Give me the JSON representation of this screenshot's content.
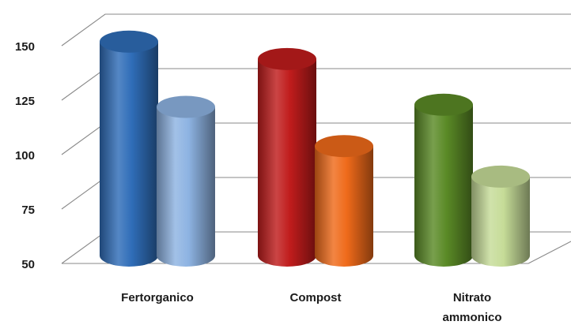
{
  "chart_data": {
    "type": "bar",
    "style": "3d-cylinder",
    "categories": [
      {
        "label_lines": [
          "Fertorganico"
        ],
        "values": [
          149,
          119
        ],
        "colors": [
          "#2f6db8",
          "#8db3e2"
        ]
      },
      {
        "label_lines": [
          "Compost"
        ],
        "values": [
          141,
          101
        ],
        "colors": [
          "#c01c1c",
          "#ef6a1a"
        ]
      },
      {
        "label_lines": [
          "Nitrato",
          "ammonico"
        ],
        "values": [
          120,
          87
        ],
        "colors": [
          "#5a8a26",
          "#c6dc98"
        ]
      }
    ],
    "ylim": [
      50,
      150
    ],
    "yticks": [
      50,
      75,
      100,
      125,
      150
    ],
    "grid": true,
    "legend": "none",
    "title": "",
    "xlabel": "",
    "ylabel": ""
  }
}
